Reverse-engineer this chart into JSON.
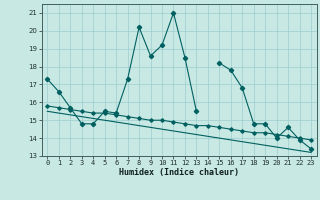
{
  "xlabel": "Humidex (Indice chaleur)",
  "bg_color": "#c8e8e4",
  "grid_color": "#9ecece",
  "line_color": "#006060",
  "x": [
    0,
    1,
    2,
    3,
    4,
    5,
    6,
    7,
    8,
    9,
    10,
    11,
    12,
    13,
    14,
    15,
    16,
    17,
    18,
    19,
    20,
    21,
    22,
    23
  ],
  "line1": [
    17.3,
    16.6,
    15.7,
    14.8,
    14.8,
    15.5,
    15.4,
    17.3,
    20.2,
    18.6,
    19.2,
    21.0,
    18.5,
    15.5,
    null,
    18.2,
    17.8,
    16.8,
    14.8,
    14.8,
    14.0,
    14.6,
    13.9,
    13.4
  ],
  "line2": [
    15.8,
    15.7,
    15.6,
    15.5,
    15.4,
    15.4,
    15.3,
    15.2,
    15.1,
    15.0,
    15.0,
    14.9,
    14.8,
    14.7,
    14.7,
    14.6,
    14.5,
    14.4,
    14.3,
    14.3,
    14.2,
    14.1,
    14.0,
    13.9
  ],
  "line3": [
    15.5,
    15.4,
    15.3,
    15.2,
    15.1,
    15.0,
    14.9,
    14.8,
    14.7,
    14.6,
    14.5,
    14.4,
    14.3,
    14.2,
    14.1,
    14.0,
    13.9,
    13.8,
    13.7,
    13.6,
    13.5,
    13.4,
    13.3,
    13.2
  ],
  "ylim": [
    13,
    21.5
  ],
  "xlim": [
    -0.5,
    23.5
  ],
  "yticks": [
    13,
    14,
    15,
    16,
    17,
    18,
    19,
    20,
    21
  ],
  "xticks": [
    0,
    1,
    2,
    3,
    4,
    5,
    6,
    7,
    8,
    9,
    10,
    11,
    12,
    13,
    14,
    15,
    16,
    17,
    18,
    19,
    20,
    21,
    22,
    23
  ],
  "xlabel_fontsize": 6.0,
  "tick_fontsize": 5.0,
  "linewidth": 0.8,
  "markersize": 2.2
}
